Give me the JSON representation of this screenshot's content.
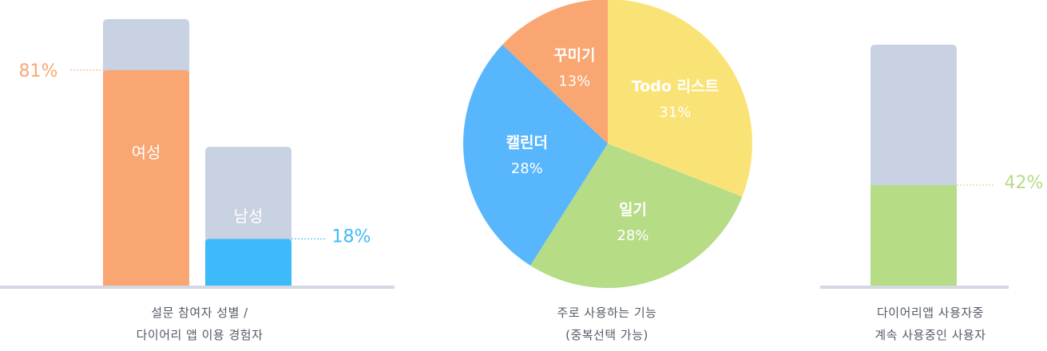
{
  "colors": {
    "female": "#f9a672",
    "male": "#3dbaf9",
    "bar_bg": "#c9d2e2",
    "axis": "#d3d8e2",
    "todo": "#fae376",
    "diary": "#b6dc86",
    "calendar": "#58b6fc",
    "decorate": "#f9a672",
    "continue": "#b6dc86",
    "caption": "#555b66"
  },
  "chart_data": [
    {
      "type": "bar",
      "categories": [
        "여성",
        "남성"
      ],
      "values": [
        81,
        18
      ],
      "value_labels": [
        "81%",
        "18%"
      ],
      "ylim": [
        0,
        100
      ],
      "caption": [
        "설문 참여자 성별 /",
        "다이어리 앱 이용 경험자"
      ]
    },
    {
      "type": "pie",
      "categories": [
        "Todo 리스트",
        "일기",
        "캘린더",
        "꾸미기"
      ],
      "values": [
        31,
        28,
        28,
        13
      ],
      "value_labels": [
        "31%",
        "28%",
        "28%",
        "13%"
      ],
      "caption": [
        "주로 사용하는 기능",
        "(중복선택 가능)"
      ]
    },
    {
      "type": "bar",
      "categories": [
        ""
      ],
      "values": [
        42
      ],
      "value_labels": [
        "42%"
      ],
      "ylim": [
        0,
        100
      ],
      "caption": [
        "다이어리앱 사용자중",
        "계속 사용중인 사용자"
      ]
    }
  ]
}
